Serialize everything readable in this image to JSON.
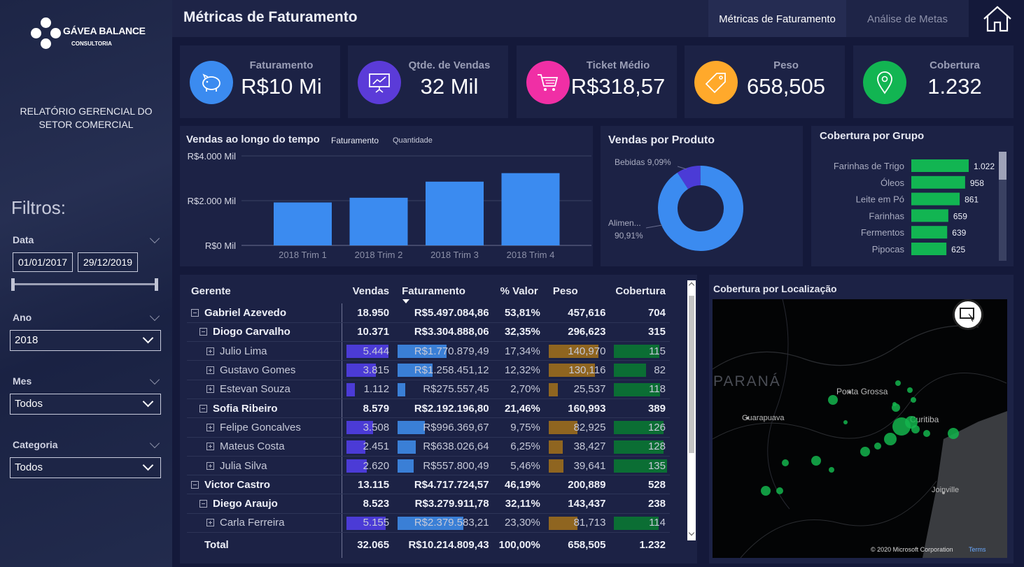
{
  "sidebar": {
    "brand_name": "GÁVEA BALANCE",
    "brand_sub": "CONSULTORIA",
    "report_title": "RELATÓRIO GERENCIAL DO SETOR COMERCIAL",
    "filters_title": "Filtros:",
    "filters": {
      "date_label": "Data",
      "date_start": "01/01/2017",
      "date_end": "29/12/2019",
      "year_label": "Ano",
      "year_value": "2018",
      "month_label": "Mes",
      "month_value": "Todos",
      "category_label": "Categoria",
      "category_value": "Todos"
    }
  },
  "header": {
    "title": "Métricas de Faturamento",
    "tab_active": "Métricas de Faturamento",
    "tab_other": "Análise de Metas"
  },
  "kpis": [
    {
      "label": "Faturamento",
      "value": "R$10 Mi",
      "color": "#3b8bf0",
      "icon": "piggy-bank-icon"
    },
    {
      "label": "Qtde. de Vendas",
      "value": "32 Mil",
      "color": "#5b3bd8",
      "icon": "presentation-chart-icon"
    },
    {
      "label": "Ticket Médio",
      "value": "R$318,57",
      "color": "#f02fa5",
      "icon": "shopping-cart-icon"
    },
    {
      "label": "Peso",
      "value": "658,505",
      "color": "#ffa92b",
      "icon": "tag-icon"
    },
    {
      "label": "Cobertura",
      "value": "1.232",
      "color": "#12b552",
      "icon": "location-pin-icon"
    }
  ],
  "charts": {
    "sales_time": {
      "title": "Vendas ao longo do tempo",
      "legend_a": "Faturamento",
      "legend_b": "Quantidade",
      "ticks": [
        "R$4.000 Mil",
        "R$2.000 Mil",
        "R$0 Mil"
      ],
      "bar_color": "#3b8bf0"
    },
    "product": {
      "title": "Vendas por Produto",
      "label_a": "Bebidas 9,09%",
      "label_b1": "Alimen...",
      "label_b2": "90,91%"
    },
    "group": {
      "title": "Cobertura por Grupo"
    },
    "map": {
      "title": "Cobertura por Localização",
      "city_1": "Ponta Grossa",
      "city_2": "Guarapuava",
      "city_3": "Curitiba",
      "city_4": "Joinville",
      "region": "PARANÁ",
      "copyright": "© 2020 Microsoft Corporation",
      "terms": "Terms"
    }
  },
  "chart_data": [
    {
      "type": "bar",
      "title": "Vendas ao longo do tempo",
      "categories": [
        "2018 Trim 1",
        "2018 Trim 2",
        "2018 Trim 3",
        "2018 Trim 4"
      ],
      "series": [
        {
          "name": "Faturamento",
          "values": [
            1920,
            2130,
            2850,
            3230
          ]
        }
      ],
      "ylim": [
        0,
        4000
      ],
      "ylabel": ""
    },
    {
      "type": "pie",
      "title": "Vendas por Produto",
      "categories": [
        "Bebidas",
        "Alimen..."
      ],
      "values": [
        9.09,
        90.91
      ],
      "colors": [
        "#4b3bd6",
        "#3b8bf0"
      ]
    },
    {
      "type": "bar",
      "title": "Cobertura por Grupo",
      "categories": [
        "Farinhas de Trigo",
        "Óleos",
        "Leite em Pó",
        "Farinhas",
        "Fermentos",
        "Pipocas"
      ],
      "values": [
        1022,
        958,
        861,
        659,
        639,
        625
      ],
      "labels": [
        "1.022",
        "958",
        "861",
        "659",
        "639",
        "625"
      ],
      "orientation": "horizontal",
      "color": "#12b552"
    }
  ],
  "table": {
    "headers": {
      "manager": "Gerente",
      "sales": "Vendas",
      "revenue": "Faturamento",
      "pct": "% Valor",
      "weight": "Peso",
      "coverage": "Cobertura"
    },
    "rows": [
      {
        "level": 0,
        "name": "Gabriel Azevedo",
        "sales": "18.950",
        "revenue": "R$5.497.084,86",
        "pct": "53,81%",
        "weight": "457,616",
        "coverage": "704"
      },
      {
        "level": 1,
        "name": "Diogo Carvalho",
        "sales": "10.371",
        "revenue": "R$3.304.888,06",
        "pct": "32,35%",
        "weight": "296,623",
        "coverage": "315"
      },
      {
        "level": 2,
        "name": "Julio Lima",
        "sales": "5.444",
        "revenue": "R$1.770.879,49",
        "pct": "17,34%",
        "weight": "140,970",
        "coverage": "115",
        "bars": [
          0.96,
          0.74,
          0.87,
          0.85
        ]
      },
      {
        "level": 2,
        "name": "Gustavo Gomes",
        "sales": "3.815",
        "revenue": "R$1.258.451,12",
        "pct": "12,32%",
        "weight": "130,116",
        "coverage": "82",
        "bars": [
          0.68,
          0.53,
          0.81,
          0.6
        ]
      },
      {
        "level": 2,
        "name": "Estevan Souza",
        "sales": "1.112",
        "revenue": "R$275.557,45",
        "pct": "2,70%",
        "weight": "25,537",
        "coverage": "118",
        "bars": [
          0.2,
          0.12,
          0.16,
          0.87
        ]
      },
      {
        "level": 1,
        "name": "Sofia Ribeiro",
        "sales": "8.579",
        "revenue": "R$2.192.196,80",
        "pct": "21,46%",
        "weight": "160,993",
        "coverage": "389"
      },
      {
        "level": 2,
        "name": "Felipe Goncalves",
        "sales": "3.508",
        "revenue": "R$996.369,67",
        "pct": "9,75%",
        "weight": "82,925",
        "coverage": "126",
        "bars": [
          0.62,
          0.42,
          0.5,
          0.93
        ]
      },
      {
        "level": 2,
        "name": "Mateus Costa",
        "sales": "2.451",
        "revenue": "R$638.026,64",
        "pct": "6,25%",
        "weight": "38,427",
        "coverage": "128",
        "bars": [
          0.44,
          0.28,
          0.24,
          0.94
        ]
      },
      {
        "level": 2,
        "name": "Julia Silva",
        "sales": "2.620",
        "revenue": "R$557.800,49",
        "pct": "5,46%",
        "weight": "39,641",
        "coverage": "135",
        "bars": [
          0.47,
          0.24,
          0.25,
          1.0
        ]
      },
      {
        "level": 0,
        "name": "Victor Castro",
        "sales": "13.115",
        "revenue": "R$4.717.724,57",
        "pct": "46,19%",
        "weight": "200,889",
        "coverage": "528"
      },
      {
        "level": 1,
        "name": "Diego Araujo",
        "sales": "8.523",
        "revenue": "R$3.279.911,78",
        "pct": "32,11%",
        "weight": "143,437",
        "coverage": "238"
      },
      {
        "level": 2,
        "name": "Carla Ferreira",
        "sales": "5.155",
        "revenue": "R$2.379.583,21",
        "pct": "23,30%",
        "weight": "81,713",
        "coverage": "114",
        "bars": [
          0.91,
          1.0,
          0.5,
          0.84
        ]
      }
    ],
    "total": {
      "name": "Total",
      "sales": "32.065",
      "revenue": "R$10.214.809,43",
      "pct": "100,00%",
      "weight": "658,505",
      "coverage": "1.232"
    }
  }
}
